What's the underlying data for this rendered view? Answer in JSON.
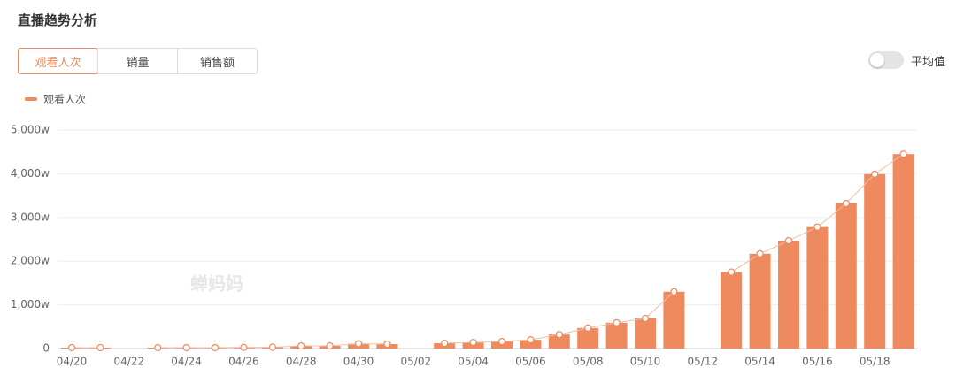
{
  "header": {
    "title": "直播趋势分析"
  },
  "tabs": [
    "观看人次",
    "销量",
    "销售额"
  ],
  "toggle": {
    "label": "平均值"
  },
  "chart_data": {
    "type": "bar",
    "watermark": "蝉妈妈",
    "categories": [
      "04/20",
      null,
      "04/22",
      null,
      "04/24",
      null,
      "04/26",
      null,
      "04/28",
      null,
      "04/30",
      null,
      "05/02",
      null,
      "05/04",
      null,
      "05/06",
      null,
      "05/08",
      null,
      "05/10",
      null,
      "05/12",
      null,
      "05/14",
      null,
      "05/16",
      null,
      "05/18",
      null
    ],
    "series": [
      {
        "name": "观看人次",
        "color": "#ef8a5e",
        "line_color": "#f6bca1",
        "values": [
          20,
          20,
          null,
          20,
          20,
          20,
          25,
          30,
          60,
          60,
          110,
          100,
          null,
          120,
          140,
          160,
          200,
          320,
          470,
          590,
          690,
          1300,
          null,
          1750,
          2170,
          2470,
          2780,
          3320,
          3990,
          4450
        ]
      }
    ],
    "ylim": [
      0,
      5000
    ],
    "yticks": [
      0,
      {
        "value": 1000,
        "label": "1,000w"
      },
      {
        "value": 2000,
        "label": "2,000w"
      },
      {
        "value": 3000,
        "label": "3,000w"
      },
      {
        "value": 4000,
        "label": "4,000w"
      },
      {
        "value": 5000,
        "label": "5,000w"
      }
    ],
    "grid": true
  }
}
